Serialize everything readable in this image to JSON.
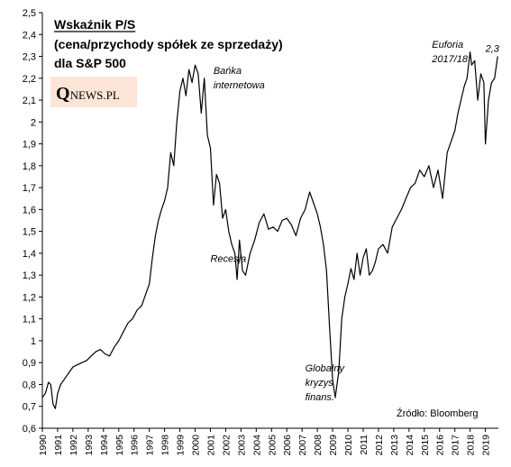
{
  "chart_data": {
    "type": "line",
    "title": "Wskaźnik P/S",
    "subtitle_lines": [
      "(cena/przychody  spółek ze sprzedaży)",
      "dla S&P 500"
    ],
    "xlabel": "",
    "ylabel": "",
    "xlim": [
      1990,
      2019.85
    ],
    "ylim": [
      0.6,
      2.5
    ],
    "y_ticks": [
      0.6,
      0.7,
      0.8,
      0.9,
      1.0,
      1.1,
      1.2,
      1.3,
      1.4,
      1.5,
      1.6,
      1.7,
      1.8,
      1.9,
      2.0,
      2.1,
      2.2,
      2.3,
      2.4,
      2.5
    ],
    "y_tick_labels": [
      "0,6",
      "0,7",
      "0,8",
      "0,9",
      "1",
      "1,1",
      "1,2",
      "1,3",
      "1,4",
      "1,5",
      "1,6",
      "1,7",
      "1,8",
      "1,9",
      "2",
      "2,1",
      "2,2",
      "2,3",
      "2,4",
      "2,5"
    ],
    "x_ticks": [
      1990,
      1991,
      1992,
      1993,
      1994,
      1995,
      1996,
      1997,
      1998,
      1999,
      2000,
      2001,
      2002,
      2003,
      2004,
      2005,
      2006,
      2007,
      2008,
      2009,
      2010,
      2011,
      2012,
      2013,
      2014,
      2015,
      2016,
      2017,
      2018,
      2019
    ],
    "x_tick_labels": [
      "1990",
      "1991",
      "1992",
      "1993",
      "1994",
      "1995",
      "1996",
      "1997",
      "1998",
      "1999",
      "2000",
      "2001",
      "2002",
      "2003",
      "2004",
      "2005",
      "2006",
      "2007",
      "2008",
      "2009",
      "2010",
      "2011",
      "2012",
      "2013",
      "2014",
      "2015",
      "2016",
      "2017",
      "2018",
      "2019"
    ],
    "grid": false,
    "line_color": "#000000",
    "series": [
      {
        "x": [
          1990.0,
          1990.2,
          1990.4,
          1990.55,
          1990.7,
          1990.85,
          1991.0,
          1991.2,
          1991.4,
          1991.6,
          1991.8,
          1992.0,
          1992.3,
          1992.6,
          1992.9,
          1993.2,
          1993.5,
          1993.8,
          1994.1,
          1994.4,
          1994.7,
          1995.0,
          1995.3,
          1995.6,
          1995.9,
          1996.2,
          1996.5,
          1996.8,
          1997.0,
          1997.2,
          1997.4,
          1997.6,
          1997.8,
          1998.0,
          1998.2,
          1998.4,
          1998.6,
          1998.8,
          1999.0,
          1999.2,
          1999.4,
          1999.6,
          1999.8,
          2000.0,
          2000.2,
          2000.4,
          2000.6,
          2000.8,
          2001.0,
          2001.2,
          2001.4,
          2001.6,
          2001.8,
          2002.0,
          2002.2,
          2002.4,
          2002.6,
          2002.75,
          2002.9,
          2003.1,
          2003.3,
          2003.6,
          2003.9,
          2004.2,
          2004.5,
          2004.8,
          2005.1,
          2005.4,
          2005.7,
          2006.0,
          2006.3,
          2006.6,
          2006.9,
          2007.2,
          2007.5,
          2007.8,
          2008.0,
          2008.2,
          2008.4,
          2008.6,
          2008.8,
          2009.0,
          2009.17,
          2009.4,
          2009.6,
          2009.8,
          2010.0,
          2010.2,
          2010.4,
          2010.6,
          2010.8,
          2011.0,
          2011.2,
          2011.4,
          2011.6,
          2011.8,
          2012.0,
          2012.3,
          2012.6,
          2012.9,
          2013.2,
          2013.5,
          2013.8,
          2014.1,
          2014.4,
          2014.7,
          2015.0,
          2015.3,
          2015.6,
          2015.9,
          2016.2,
          2016.5,
          2016.8,
          2017.0,
          2017.2,
          2017.4,
          2017.6,
          2017.8,
          2018.0,
          2018.1,
          2018.3,
          2018.5,
          2018.7,
          2018.9,
          2019.0,
          2019.2,
          2019.4,
          2019.6,
          2019.8
        ],
        "y": [
          0.74,
          0.76,
          0.81,
          0.8,
          0.71,
          0.69,
          0.76,
          0.8,
          0.82,
          0.84,
          0.86,
          0.88,
          0.89,
          0.9,
          0.91,
          0.93,
          0.95,
          0.96,
          0.94,
          0.93,
          0.97,
          1.0,
          1.04,
          1.08,
          1.1,
          1.14,
          1.16,
          1.22,
          1.26,
          1.38,
          1.48,
          1.55,
          1.6,
          1.64,
          1.7,
          1.86,
          1.8,
          2.0,
          2.14,
          2.2,
          2.12,
          2.24,
          2.18,
          2.26,
          2.22,
          2.04,
          2.2,
          1.94,
          1.88,
          1.62,
          1.76,
          1.72,
          1.56,
          1.6,
          1.5,
          1.44,
          1.4,
          1.28,
          1.46,
          1.32,
          1.3,
          1.4,
          1.46,
          1.54,
          1.58,
          1.51,
          1.52,
          1.5,
          1.55,
          1.56,
          1.53,
          1.48,
          1.56,
          1.6,
          1.68,
          1.62,
          1.58,
          1.52,
          1.44,
          1.32,
          1.06,
          0.82,
          0.74,
          0.86,
          1.1,
          1.2,
          1.26,
          1.33,
          1.28,
          1.4,
          1.3,
          1.38,
          1.42,
          1.3,
          1.32,
          1.36,
          1.42,
          1.44,
          1.4,
          1.52,
          1.56,
          1.6,
          1.65,
          1.7,
          1.72,
          1.78,
          1.75,
          1.8,
          1.7,
          1.78,
          1.65,
          1.86,
          1.92,
          1.96,
          2.04,
          2.1,
          2.16,
          2.2,
          2.32,
          2.26,
          2.28,
          2.1,
          2.22,
          2.18,
          1.9,
          2.1,
          2.18,
          2.2,
          2.3
        ]
      }
    ],
    "annotations": [
      {
        "lines": [
          "Bańka",
          "internetowa"
        ],
        "x": 2001.2,
        "y": 2.22
      },
      {
        "lines": [
          "Recesja"
        ],
        "x": 2001.0,
        "y": 1.36
      },
      {
        "lines": [
          "Globalny",
          "kryzys",
          "finans."
        ],
        "x": 2007.2,
        "y": 0.86
      },
      {
        "lines": [
          "Euforia",
          "2017/18"
        ],
        "x": 2015.5,
        "y": 2.34
      },
      {
        "lines": [
          "2,3"
        ],
        "x": 2019.0,
        "y": 2.32
      }
    ],
    "source": "Źródło: Bloomberg"
  },
  "logo": {
    "q": "Q",
    "rest": "NEWS.PL",
    "background": "#fce5d6"
  }
}
